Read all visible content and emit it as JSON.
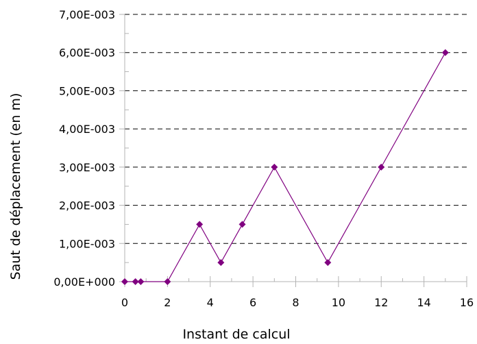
{
  "chart_data": {
    "type": "line",
    "title": "",
    "xlabel": "Instant de calcul",
    "ylabel": "Saut de déplacement (en m)",
    "xlim": [
      0,
      16
    ],
    "ylim": [
      0,
      0.007
    ],
    "x_ticks": [
      0,
      2,
      4,
      6,
      8,
      10,
      12,
      14,
      16
    ],
    "x_tick_labels": [
      "0",
      "2",
      "4",
      "6",
      "8",
      "10",
      "12",
      "14",
      "16"
    ],
    "y_ticks": [
      0,
      0.001,
      0.002,
      0.003,
      0.004,
      0.005,
      0.006,
      0.007
    ],
    "y_tick_labels": [
      "0,00E+000",
      "1,00E-003",
      "2,00E-003",
      "3,00E-003",
      "4,00E-003",
      "5,00E-003",
      "6,00E-003",
      "7,00E-003"
    ],
    "grid": "horizontal dashed",
    "legend": "none",
    "colors": {
      "series": "#800080",
      "grid": "#000000",
      "axis": "#b3b3b3"
    },
    "series": [
      {
        "x": [
          0,
          0.5,
          0.75,
          2,
          3.5,
          4.5,
          5.5,
          7,
          9.5,
          12,
          15
        ],
        "y": [
          0,
          0,
          0,
          0,
          0.0015,
          0.0005,
          0.0015,
          0.003,
          0.0005,
          0.003,
          0.006
        ],
        "marker": "diamond"
      }
    ]
  }
}
